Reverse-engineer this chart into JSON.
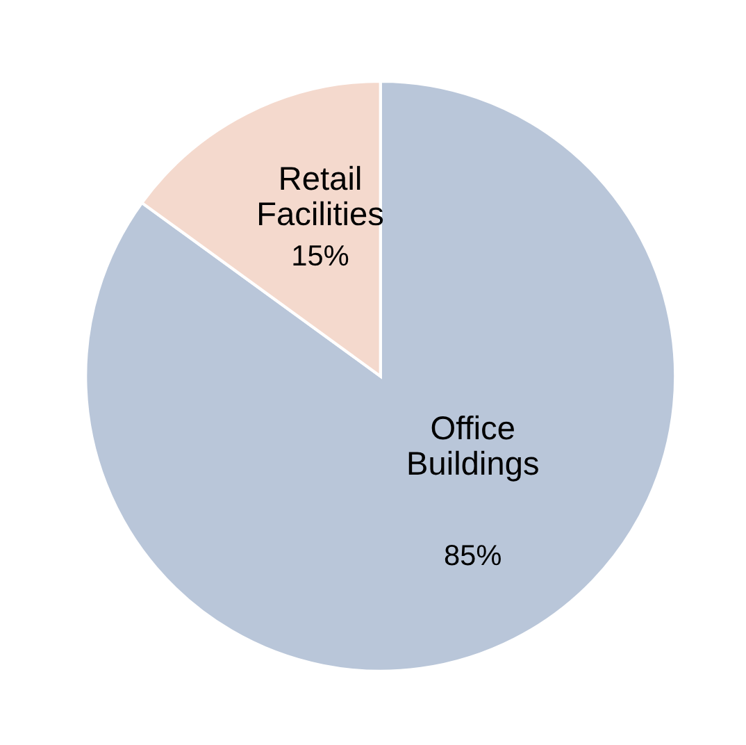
{
  "chart_data": {
    "type": "pie",
    "categories": [
      "Office Buildings",
      "Retail Facilities"
    ],
    "values": [
      85,
      15
    ],
    "colors": [
      "#b9c6d9",
      "#f4d9cd"
    ],
    "value_labels": [
      "85%",
      "15%"
    ]
  }
}
